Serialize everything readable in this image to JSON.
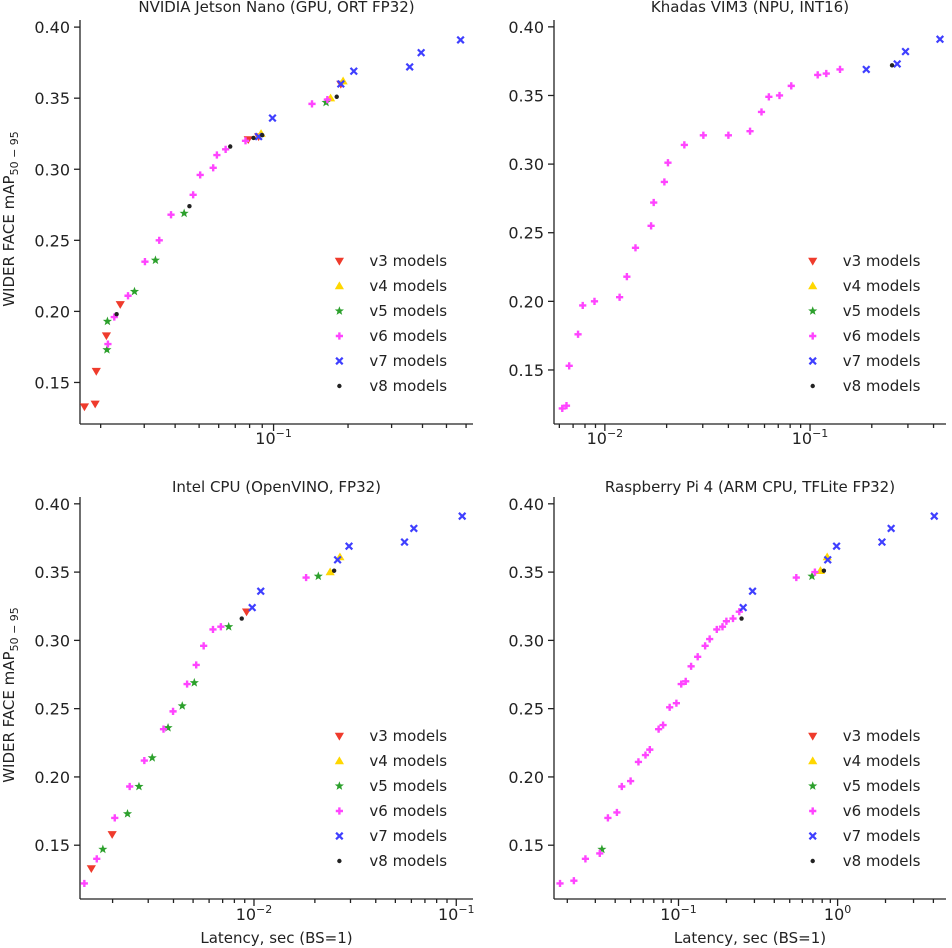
{
  "chart_data": [
    {
      "type": "scatter",
      "panel": "top-left",
      "title": "NVIDIA Jetson Nano (GPU, ORT FP32)",
      "xlabel": "",
      "ylabel": "WIDER FACE mAP",
      "ylabel_sub": "50 − 95",
      "xscale": "log",
      "xlim": [
        0.0165,
        0.64
      ],
      "ylim": [
        0.125,
        0.405
      ],
      "yticks": [
        {
          "v": 0.15,
          "label": "0.15"
        },
        {
          "v": 0.2,
          "label": "0.20"
        },
        {
          "v": 0.25,
          "label": "0.25"
        },
        {
          "v": 0.3,
          "label": "0.30"
        },
        {
          "v": 0.35,
          "label": "0.35"
        },
        {
          "v": 0.4,
          "label": "0.40"
        }
      ],
      "xticks": [
        {
          "v": 0.1,
          "base": "10",
          "exp": "−1"
        }
      ],
      "legend": "lower-right",
      "series": [
        {
          "name": "v3 models",
          "marker": "tri",
          "color": "#ef3b2c",
          "points": [
            [
              0.0172,
              0.133
            ],
            [
              0.019,
              0.135
            ],
            [
              0.0192,
              0.158
            ],
            [
              0.0211,
              0.183
            ],
            [
              0.024,
              0.205
            ],
            [
              0.079,
              0.321
            ],
            [
              0.087,
              0.323
            ],
            [
              0.187,
              0.36
            ]
          ]
        },
        {
          "name": "v4 models",
          "marker": "tri-up",
          "color": "#ffd700",
          "points": [
            [
              0.089,
              0.325
            ],
            [
              0.17,
              0.35
            ],
            [
              0.191,
              0.362
            ]
          ]
        },
        {
          "name": "v5 models",
          "marker": "star",
          "color": "#2ca02c",
          "points": [
            [
              0.0212,
              0.173
            ],
            [
              0.0213,
              0.193
            ],
            [
              0.0274,
              0.214
            ],
            [
              0.0333,
              0.236
            ],
            [
              0.0435,
              0.269
            ],
            [
              0.163,
              0.347
            ]
          ]
        },
        {
          "name": "v6 models",
          "marker": "plus",
          "color": "#ff44ff",
          "points": [
            [
              0.0214,
              0.177
            ],
            [
              0.0227,
              0.196
            ],
            [
              0.0258,
              0.211
            ],
            [
              0.0302,
              0.235
            ],
            [
              0.0345,
              0.25
            ],
            [
              0.0385,
              0.268
            ],
            [
              0.0473,
              0.282
            ],
            [
              0.0505,
              0.296
            ],
            [
              0.057,
              0.301
            ],
            [
              0.059,
              0.31
            ],
            [
              0.064,
              0.314
            ],
            [
              0.077,
              0.32
            ],
            [
              0.143,
              0.346
            ],
            [
              0.165,
              0.349
            ]
          ]
        },
        {
          "name": "v7 models",
          "marker": "x",
          "color": "#3f3fff",
          "points": [
            [
              0.087,
              0.323
            ],
            [
              0.099,
              0.336
            ],
            [
              0.187,
              0.36
            ],
            [
              0.211,
              0.369
            ],
            [
              0.355,
              0.372
            ],
            [
              0.395,
              0.382
            ],
            [
              0.57,
              0.391
            ]
          ]
        },
        {
          "name": "v8 models",
          "marker": "dot",
          "color": "#222222",
          "points": [
            [
              0.0232,
              0.198
            ],
            [
              0.0457,
              0.274
            ],
            [
              0.0668,
              0.316
            ],
            [
              0.083,
              0.322
            ],
            [
              0.09,
              0.324
            ],
            [
              0.18,
              0.351
            ]
          ]
        }
      ]
    },
    {
      "type": "scatter",
      "panel": "top-right",
      "title": "Khadas VIM3 (NPU, INT16)",
      "xlabel": "",
      "ylabel": "",
      "ylabel_sub": "",
      "xscale": "log",
      "xlim": [
        0.00565,
        0.46
      ],
      "ylim": [
        0.115,
        0.405
      ],
      "yticks": [
        {
          "v": 0.15,
          "label": "0.15"
        },
        {
          "v": 0.2,
          "label": "0.20"
        },
        {
          "v": 0.25,
          "label": "0.25"
        },
        {
          "v": 0.3,
          "label": "0.30"
        },
        {
          "v": 0.35,
          "label": "0.35"
        },
        {
          "v": 0.4,
          "label": "0.40"
        }
      ],
      "xticks": [
        {
          "v": 0.01,
          "base": "10",
          "exp": "−2"
        },
        {
          "v": 0.1,
          "base": "10",
          "exp": "−1"
        }
      ],
      "legend": "lower-right",
      "series": [
        {
          "name": "v3 models",
          "marker": "tri",
          "color": "#ef3b2c",
          "points": []
        },
        {
          "name": "v4 models",
          "marker": "tri-up",
          "color": "#ffd700",
          "points": []
        },
        {
          "name": "v5 models",
          "marker": "star",
          "color": "#2ca02c",
          "points": []
        },
        {
          "name": "v6 models",
          "marker": "plus",
          "color": "#ff44ff",
          "points": [
            [
              0.0062,
              0.122
            ],
            [
              0.0065,
              0.124
            ],
            [
              0.0067,
              0.153
            ],
            [
              0.0074,
              0.176
            ],
            [
              0.0078,
              0.197
            ],
            [
              0.0089,
              0.2
            ],
            [
              0.0118,
              0.203
            ],
            [
              0.0128,
              0.218
            ],
            [
              0.0141,
              0.239
            ],
            [
              0.0168,
              0.255
            ],
            [
              0.0173,
              0.272
            ],
            [
              0.0195,
              0.287
            ],
            [
              0.0203,
              0.301
            ],
            [
              0.0244,
              0.314
            ],
            [
              0.0302,
              0.321
            ],
            [
              0.04,
              0.321
            ],
            [
              0.051,
              0.324
            ],
            [
              0.058,
              0.338
            ],
            [
              0.063,
              0.349
            ],
            [
              0.071,
              0.35
            ],
            [
              0.081,
              0.357
            ],
            [
              0.109,
              0.365
            ],
            [
              0.12,
              0.366
            ],
            [
              0.14,
              0.369
            ]
          ]
        },
        {
          "name": "v7 models",
          "marker": "x",
          "color": "#3f3fff",
          "points": [
            [
              0.188,
              0.369
            ],
            [
              0.266,
              0.373
            ],
            [
              0.292,
              0.382
            ],
            [
              0.43,
              0.391
            ]
          ]
        },
        {
          "name": "v8 models",
          "marker": "dot",
          "color": "#222222",
          "points": [
            [
              0.251,
              0.372
            ]
          ]
        }
      ]
    },
    {
      "type": "scatter",
      "panel": "bottom-left",
      "title": "Intel CPU (OpenVINO, FP32)",
      "xlabel": "Latency, sec (BS=1)",
      "ylabel": "WIDER FACE mAP",
      "ylabel_sub": "50 − 95",
      "xscale": "log",
      "xlim": [
        0.00138,
        0.121
      ],
      "ylim": [
        0.115,
        0.405
      ],
      "yticks": [
        {
          "v": 0.15,
          "label": "0.15"
        },
        {
          "v": 0.2,
          "label": "0.20"
        },
        {
          "v": 0.25,
          "label": "0.25"
        },
        {
          "v": 0.3,
          "label": "0.30"
        },
        {
          "v": 0.35,
          "label": "0.35"
        },
        {
          "v": 0.4,
          "label": "0.40"
        }
      ],
      "xticks": [
        {
          "v": 0.01,
          "base": "10",
          "exp": "−2"
        },
        {
          "v": 0.1,
          "base": "10",
          "exp": "−1"
        }
      ],
      "legend": "lower-right",
      "series": [
        {
          "name": "v3 models",
          "marker": "tri",
          "color": "#ef3b2c",
          "points": [
            [
              0.00157,
              0.133
            ],
            [
              0.00199,
              0.158
            ],
            [
              0.00919,
              0.321
            ]
          ]
        },
        {
          "name": "v4 models",
          "marker": "tri-up",
          "color": "#ffd700",
          "points": [
            [
              0.0238,
              0.35
            ],
            [
              0.0266,
              0.361
            ]
          ]
        },
        {
          "name": "v5 models",
          "marker": "star",
          "color": "#2ca02c",
          "points": [
            [
              0.00179,
              0.147
            ],
            [
              0.00237,
              0.173
            ],
            [
              0.0027,
              0.193
            ],
            [
              0.00314,
              0.214
            ],
            [
              0.00376,
              0.236
            ],
            [
              0.00442,
              0.252
            ],
            [
              0.00507,
              0.269
            ],
            [
              0.0075,
              0.31
            ],
            [
              0.0208,
              0.347
            ]
          ]
        },
        {
          "name": "v6 models",
          "marker": "plus",
          "color": "#ff44ff",
          "points": [
            [
              0.00145,
              0.122
            ],
            [
              0.00167,
              0.14
            ],
            [
              0.00205,
              0.17
            ],
            [
              0.00243,
              0.193
            ],
            [
              0.00287,
              0.212
            ],
            [
              0.00357,
              0.235
            ],
            [
              0.00398,
              0.248
            ],
            [
              0.00467,
              0.268
            ],
            [
              0.00518,
              0.282
            ],
            [
              0.00564,
              0.296
            ],
            [
              0.00627,
              0.308
            ],
            [
              0.00686,
              0.31
            ],
            [
              0.0181,
              0.346
            ]
          ]
        },
        {
          "name": "v7 models",
          "marker": "x",
          "color": "#3f3fff",
          "points": [
            [
              0.0098,
              0.324
            ],
            [
              0.0108,
              0.336
            ],
            [
              0.0259,
              0.359
            ],
            [
              0.0295,
              0.369
            ],
            [
              0.0555,
              0.372
            ],
            [
              0.0617,
              0.382
            ],
            [
              0.107,
              0.391
            ]
          ]
        },
        {
          "name": "v8 models",
          "marker": "dot",
          "color": "#222222",
          "points": [
            [
              0.0087,
              0.316
            ],
            [
              0.0249,
              0.351
            ]
          ]
        }
      ]
    },
    {
      "type": "scatter",
      "panel": "bottom-right",
      "title": "Raspberry Pi 4 (ARM CPU, TFLite FP32)",
      "xlabel": "Latency, sec (BS=1)",
      "ylabel": "",
      "ylabel_sub": "",
      "xscale": "log",
      "xlim": [
        0.0165,
        4.8
      ],
      "ylim": [
        0.115,
        0.405
      ],
      "yticks": [
        {
          "v": 0.15,
          "label": "0.15"
        },
        {
          "v": 0.2,
          "label": "0.20"
        },
        {
          "v": 0.25,
          "label": "0.25"
        },
        {
          "v": 0.3,
          "label": "0.30"
        },
        {
          "v": 0.35,
          "label": "0.35"
        },
        {
          "v": 0.4,
          "label": "0.40"
        }
      ],
      "xticks": [
        {
          "v": 0.1,
          "base": "10",
          "exp": "−1"
        },
        {
          "v": 1,
          "base": "10",
          "exp": "0"
        }
      ],
      "legend": "lower-right",
      "series": [
        {
          "name": "v3 models",
          "marker": "tri",
          "color": "#ef3b2c",
          "points": []
        },
        {
          "name": "v4 models",
          "marker": "tri-up",
          "color": "#ffd700",
          "points": [
            [
              0.78,
              0.351
            ],
            [
              0.86,
              0.361
            ]
          ]
        },
        {
          "name": "v5 models",
          "marker": "star",
          "color": "#2ca02c",
          "points": [
            [
              0.033,
              0.147
            ],
            [
              0.69,
              0.347
            ]
          ]
        },
        {
          "name": "v6 models",
          "marker": "plus",
          "color": "#ff44ff",
          "points": [
            [
              0.018,
              0.122
            ],
            [
              0.022,
              0.124
            ],
            [
              0.026,
              0.14
            ],
            [
              0.032,
              0.144
            ],
            [
              0.036,
              0.17
            ],
            [
              0.041,
              0.174
            ],
            [
              0.044,
              0.193
            ],
            [
              0.05,
              0.197
            ],
            [
              0.056,
              0.211
            ],
            [
              0.062,
              0.216
            ],
            [
              0.066,
              0.22
            ],
            [
              0.075,
              0.235
            ],
            [
              0.08,
              0.238
            ],
            [
              0.088,
              0.251
            ],
            [
              0.097,
              0.254
            ],
            [
              0.104,
              0.268
            ],
            [
              0.111,
              0.27
            ],
            [
              0.12,
              0.281
            ],
            [
              0.132,
              0.288
            ],
            [
              0.147,
              0.296
            ],
            [
              0.157,
              0.301
            ],
            [
              0.174,
              0.308
            ],
            [
              0.189,
              0.31
            ],
            [
              0.2,
              0.314
            ],
            [
              0.22,
              0.316
            ],
            [
              0.241,
              0.321
            ],
            [
              0.55,
              0.346
            ],
            [
              0.72,
              0.35
            ]
          ]
        },
        {
          "name": "v7 models",
          "marker": "x",
          "color": "#3f3fff",
          "points": [
            [
              0.255,
              0.324
            ],
            [
              0.292,
              0.336
            ],
            [
              0.867,
              0.359
            ],
            [
              0.985,
              0.369
            ],
            [
              1.9,
              0.372
            ],
            [
              2.17,
              0.382
            ],
            [
              4.05,
              0.391
            ]
          ]
        },
        {
          "name": "v8 models",
          "marker": "dot",
          "color": "#222222",
          "points": [
            [
              0.249,
              0.316
            ],
            [
              0.82,
              0.351
            ]
          ]
        }
      ]
    }
  ]
}
